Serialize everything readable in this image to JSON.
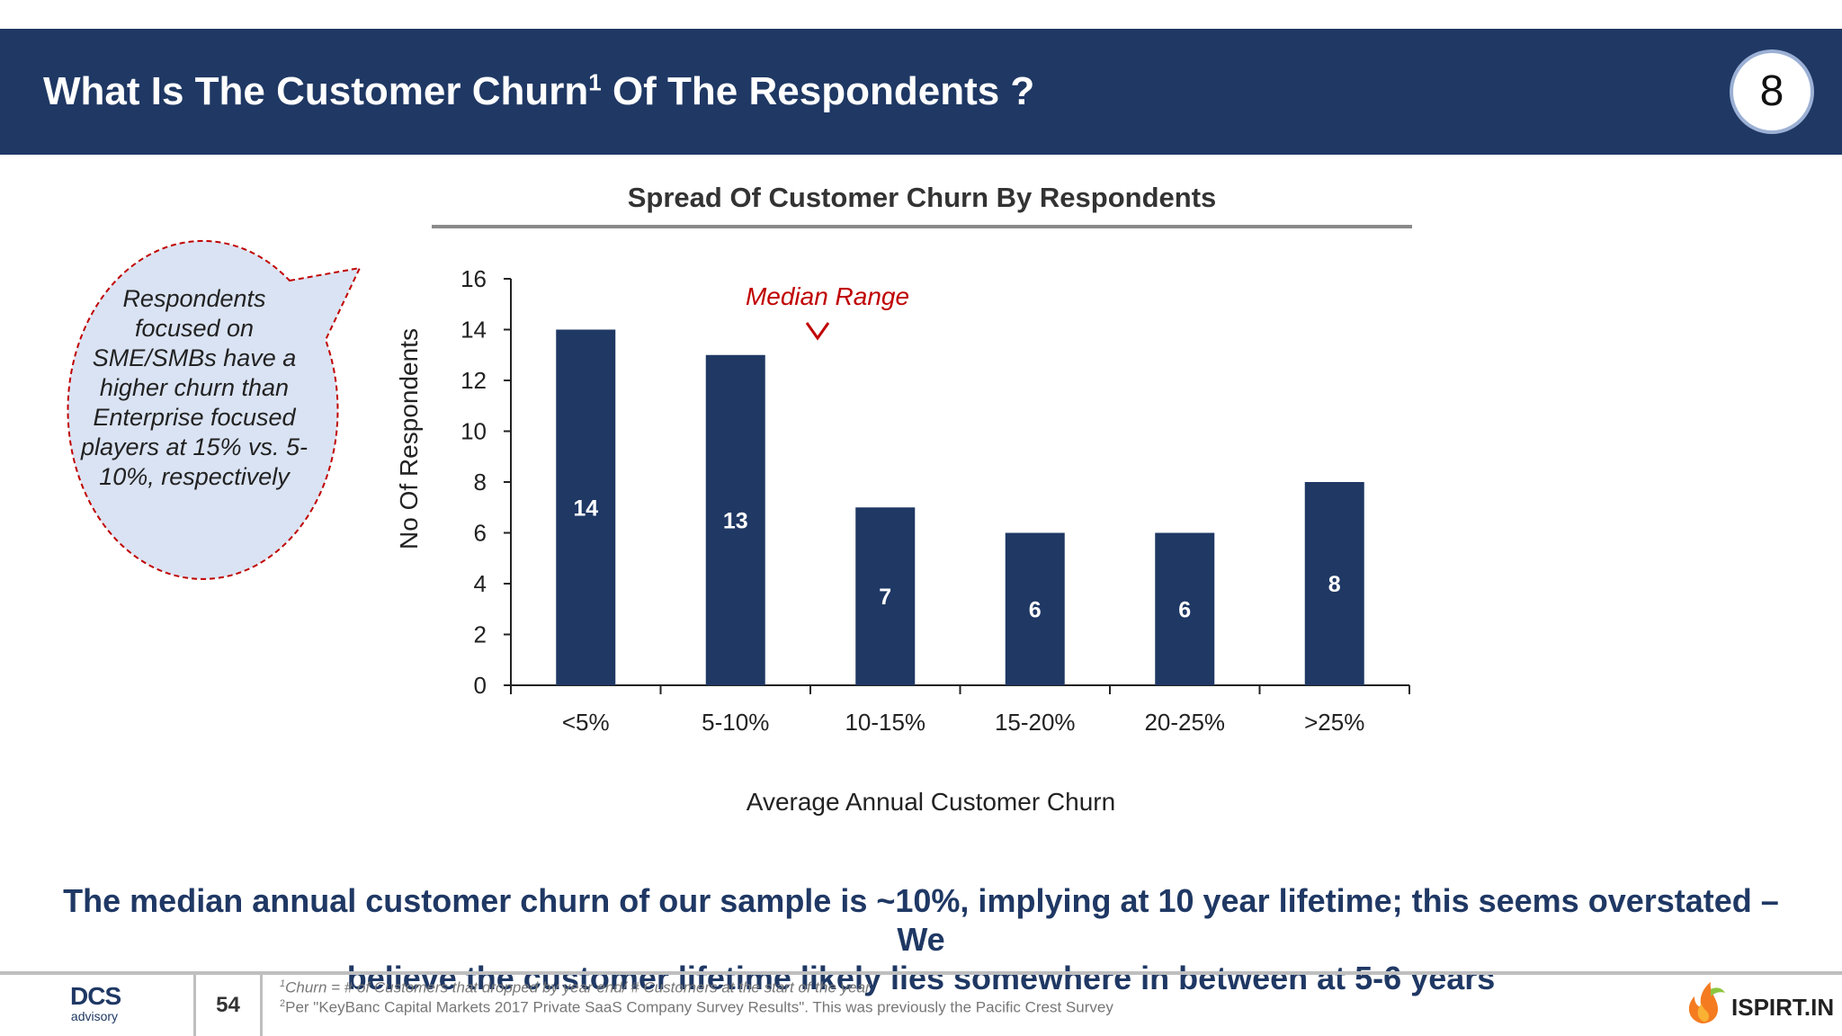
{
  "header": {
    "title_pre": "What Is The Customer Churn",
    "title_sup": "1",
    "title_post": " Of The Respondents ?",
    "page_badge": "8",
    "bg_color": "#1f3864"
  },
  "callout": {
    "text": "Respondents focused on SME/SMBs have a higher churn than Enterprise focused players at 15% vs. 5-10%, respectively"
  },
  "annotation": {
    "text": "Median Range",
    "color": "#c00000"
  },
  "chart_data": {
    "type": "bar",
    "title": "Spread Of Customer Churn By Respondents",
    "xlabel": "Average Annual Customer Churn",
    "ylabel": "No Of Respondents",
    "categories": [
      "<5%",
      "5-10%",
      "10-15%",
      "15-20%",
      "20-25%",
      ">25%"
    ],
    "values": [
      14,
      13,
      7,
      6,
      6,
      8
    ],
    "ylim": [
      0,
      16
    ],
    "yticks": [
      0,
      2,
      4,
      6,
      8,
      10,
      12,
      14,
      16
    ],
    "bar_color": "#1f3864",
    "grid": false
  },
  "conclusion": {
    "line1": "The median annual customer churn of our sample is ~10%, implying at 10 year lifetime; this seems overstated – We",
    "line2": "believe the customer lifetime likely lies somewhere in between at 5-6 years"
  },
  "footer": {
    "logo_main": "DCS",
    "logo_sub": "advisory",
    "slide_number": "54",
    "footnote1_sup": "1",
    "footnote1": "Churn = # of Customers that dropped by year end/ # Customers at the start of the year",
    "footnote2_sup": "2",
    "footnote2": "Per \"KeyBanc Capital Markets 2017 Private SaaS Company Survey Results\". This was previously the Pacific Crest Survey",
    "partner_logo": "ISPIRT.IN"
  }
}
